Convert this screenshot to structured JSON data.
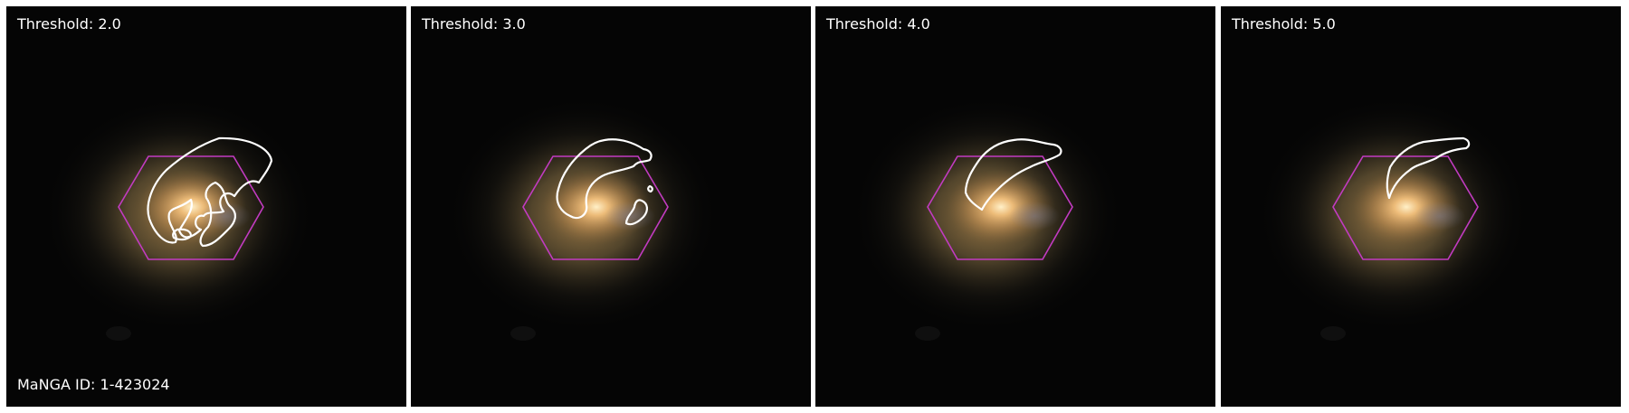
{
  "figure": {
    "panels": [
      {
        "threshold_label": "Threshold: 2.0"
      },
      {
        "threshold_label": "Threshold: 3.0"
      },
      {
        "threshold_label": "Threshold: 4.0"
      },
      {
        "threshold_label": "Threshold: 5.0"
      }
    ],
    "galaxy_id_label": "MaNGA ID: 1-423024",
    "colors": {
      "background": "#050505",
      "galaxy_core": "#f2c07c",
      "galaxy_halo": "#7c6740",
      "ifu_hexagon": "#c23bc1",
      "contour": "#ffffff"
    }
  }
}
